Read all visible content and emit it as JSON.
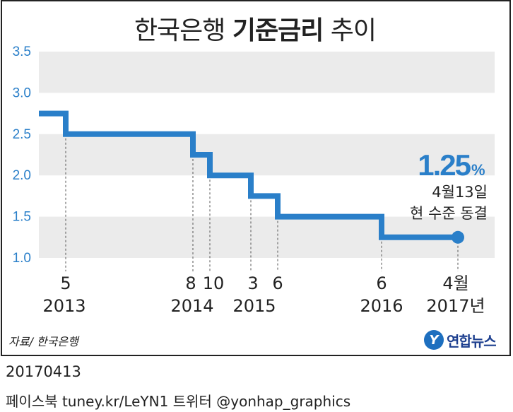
{
  "title": {
    "normal": "한국은행 ",
    "bold": "기준금리",
    "suffix": " 추이"
  },
  "source": "자료/ 한국은행",
  "logo": {
    "mark": "Y",
    "text": "연합뉴스"
  },
  "footer": {
    "date": "20170413",
    "social": "페이스북 tuney.kr/LeYN1 트위터 @yonhap_graphics"
  },
  "colors": {
    "line": "#2a7fc9",
    "band": "#ebebeb",
    "axis_text": "#2a7fc9",
    "highlight": "#2a7fc9"
  },
  "chart_data": {
    "type": "line",
    "step": true,
    "ylim": [
      1.0,
      3.5
    ],
    "yticks": [
      "3.5",
      "3.0",
      "2.5",
      "2.0",
      "1.5",
      "1.0"
    ],
    "grid": "alternating horizontal bands",
    "series": [
      {
        "points": [
          {
            "t": 0,
            "y": 2.75
          },
          {
            "t": 1,
            "y": 2.5
          },
          {
            "t": 2,
            "y": 2.25
          },
          {
            "t": 3,
            "y": 2.0
          },
          {
            "t": 4,
            "y": 1.75
          },
          {
            "t": 5,
            "y": 1.5
          },
          {
            "t": 6,
            "y": 1.25
          },
          {
            "t": 7,
            "y": 1.25
          }
        ]
      }
    ],
    "x_month_labels": [
      "5",
      "8",
      "10",
      "3",
      "6",
      "6",
      "4월"
    ],
    "x_year_labels": [
      "2013",
      "2014",
      "2015",
      "2016",
      "2017년"
    ],
    "annotation": {
      "value": "1.25",
      "unit": "%",
      "line1": "4월13일",
      "line2": "현 수준 동결"
    }
  }
}
